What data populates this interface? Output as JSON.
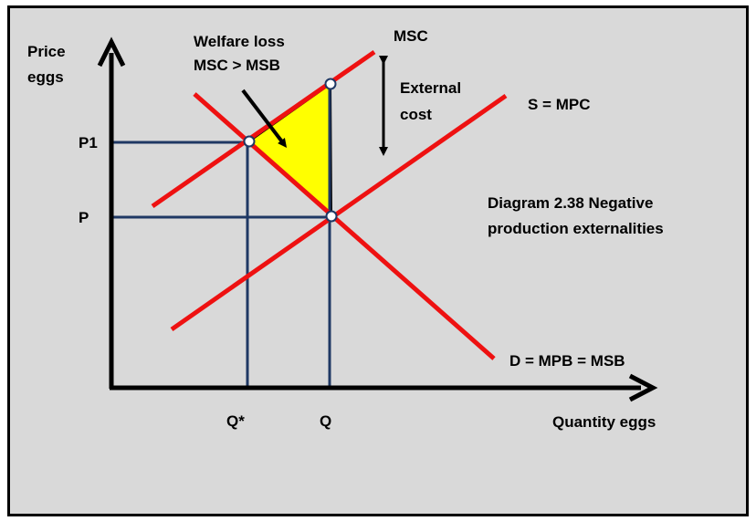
{
  "chart_data": {
    "type": "line",
    "title": "Diagram 2.38 Negative production externalities",
    "title_lines": [
      "Diagram 2.38 Negative",
      "production externalities"
    ],
    "xlabel": "Quantity eggs",
    "ylabel_lines": [
      "Price",
      "eggs"
    ],
    "x_ticks": [
      "Q*",
      "Q"
    ],
    "y_ticks": [
      "P1",
      "P"
    ],
    "series": [
      {
        "name": "MSC",
        "color": "#ee1111"
      },
      {
        "name": "S = MPC",
        "color": "#ee1111"
      },
      {
        "name": "D = MPB = MSB",
        "color": "#ee1111"
      }
    ],
    "annotations": {
      "welfare_loss": [
        "Welfare loss",
        "MSC > MSB"
      ],
      "external_cost": [
        "External",
        "cost"
      ]
    },
    "colors": {
      "curves": "#ee1111",
      "guides": "#1f3864",
      "welfare_area": "#ffff00",
      "background": "#d9d9d9"
    }
  }
}
